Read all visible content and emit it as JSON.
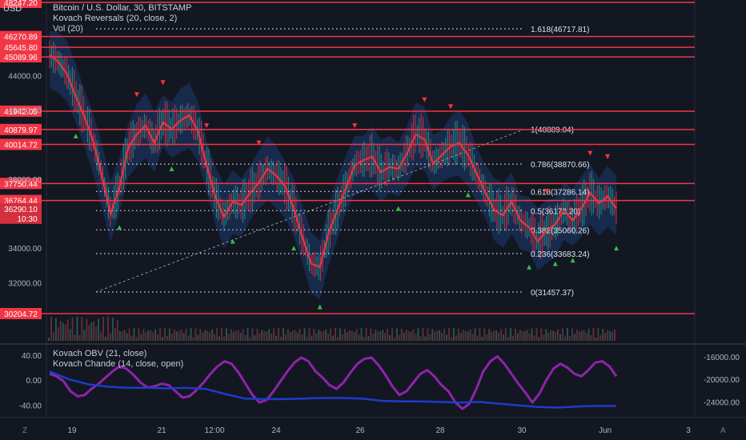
{
  "header": {
    "currency": "USD",
    "title": "Bitcoin / U.S. Dollar, 30, BITSTAMP",
    "indicator1": "Kovach Reversals (20, close, 2)",
    "indicator2": "Vol (20)"
  },
  "lower_pane": {
    "indicator1": "Kovach OBV (21, close)",
    "indicator2": "Kovach Chande (14, close, open)"
  },
  "corner": {
    "left": "Z",
    "right": "A"
  },
  "colors": {
    "background": "#131722",
    "red": "#f23645",
    "purple": "#8e24aa",
    "blue": "#1e3cc8",
    "green": "#26a69a",
    "band": "#1e3a6e"
  },
  "chart_data": {
    "type": "line",
    "title": "Bitcoin / U.S. Dollar, 30, BITSTAMP",
    "price_axis": {
      "ylim": [
        30204.72,
        48247.2
      ],
      "ticks": [
        "44000.00",
        "42000.00",
        "38000.00",
        "34000.00",
        "32000.00"
      ],
      "tick_values": [
        44000,
        42000,
        38000,
        34000,
        32000
      ]
    },
    "x_ticks": [
      "19",
      "21",
      "12:00",
      "24",
      "26",
      "28",
      "30",
      "Jun",
      "3"
    ],
    "horizontal_levels": [
      {
        "label": "48247.20",
        "value": 48247.2
      },
      {
        "label": "46270.89",
        "value": 46270.89
      },
      {
        "label": "45645.80",
        "value": 45645.8
      },
      {
        "label": "45089.96",
        "value": 45089.96
      },
      {
        "label": "41942.05",
        "value": 41942.05
      },
      {
        "label": "40879.97",
        "value": 40879.97
      },
      {
        "label": "40014.72",
        "value": 40014.72
      },
      {
        "label": "37750.44",
        "value": 37750.44
      },
      {
        "label": "36764.44",
        "value": 36764.44
      },
      {
        "label": "30204.72",
        "value": 30204.72
      }
    ],
    "current_price": {
      "label": "36290.10",
      "countdown": "10:30"
    },
    "fibonacci": [
      {
        "label": "1.618(46717.81)",
        "value": 46717.81
      },
      {
        "label": "1(40889.04)",
        "value": 40889.04
      },
      {
        "label": "0.786(38870.66)",
        "value": 38870.66
      },
      {
        "label": "0.618(37286.14)",
        "value": 37286.14
      },
      {
        "label": "0.5(36173.20)",
        "value": 36173.2
      },
      {
        "label": "0.382(35060.26)",
        "value": 35060.26
      },
      {
        "label": "0.236(33683.24)",
        "value": 33683.24
      },
      {
        "label": "0(31457.37)",
        "value": 31457.37
      }
    ],
    "series": [
      {
        "name": "BTCUSD",
        "values": [
          45200,
          44800,
          44100,
          42800,
          41600,
          40200,
          38200,
          36000,
          37500,
          39800,
          40600,
          41100,
          40100,
          41300,
          40900,
          41400,
          41700,
          40800,
          38800,
          37000,
          35800,
          36700,
          36500,
          37200,
          37800,
          38600,
          38200,
          37600,
          36300,
          34600,
          33100,
          32900,
          34900,
          36200,
          37500,
          38800,
          39100,
          39300,
          38400,
          38700,
          38600,
          39500,
          40600,
          40300,
          38900,
          39400,
          39900,
          40100,
          39400,
          38300,
          37200,
          36200,
          35900,
          36700,
          35600,
          35200,
          34400,
          35000,
          35400,
          36200,
          35600,
          36300,
          37200,
          36600,
          37000,
          36300
        ]
      }
    ],
    "oscillator_axis": {
      "ticks": [
        "40.00",
        "0.00",
        "-40.00"
      ],
      "tick_values": [
        40,
        0,
        -40
      ],
      "ylim": [
        -55,
        50
      ]
    },
    "obv_axis": {
      "ticks": [
        "-16000.00",
        "-20000.00",
        "-24000.00"
      ],
      "tick_values": [
        -16000,
        -20000,
        -24000
      ],
      "ylim": [
        -26200,
        -14600
      ]
    },
    "chande": [
      10,
      6,
      -2,
      -18,
      -26,
      -24,
      -14,
      -6,
      4,
      14,
      22,
      18,
      8,
      -4,
      -12,
      -10,
      -6,
      -8,
      -18,
      -28,
      -26,
      -16,
      -4,
      10,
      22,
      30,
      26,
      12,
      -6,
      -24,
      -36,
      -32,
      -18,
      -2,
      14,
      28,
      36,
      30,
      14,
      4,
      -8,
      -14,
      -4,
      12,
      26,
      34,
      36,
      24,
      8,
      -10,
      -24,
      -18,
      -4,
      10,
      16,
      6,
      -8,
      -18,
      -36,
      -46,
      -38,
      -14,
      14,
      30,
      38,
      26,
      10,
      -6,
      -20,
      -36,
      -22,
      0,
      18,
      26,
      20,
      10,
      6,
      16,
      28,
      30,
      22,
      6
    ],
    "obv": [
      -18600,
      -20000,
      -20900,
      -21300,
      -21500,
      -21500,
      -21600,
      -21500,
      -21700,
      -22600,
      -23400,
      -23500,
      -23500,
      -23400,
      -23300,
      -23300,
      -23400,
      -23800,
      -23900,
      -23900,
      -24000,
      -24100,
      -24000,
      -24300,
      -24600,
      -24900,
      -25000,
      -24800,
      -24700,
      -24700
    ]
  }
}
